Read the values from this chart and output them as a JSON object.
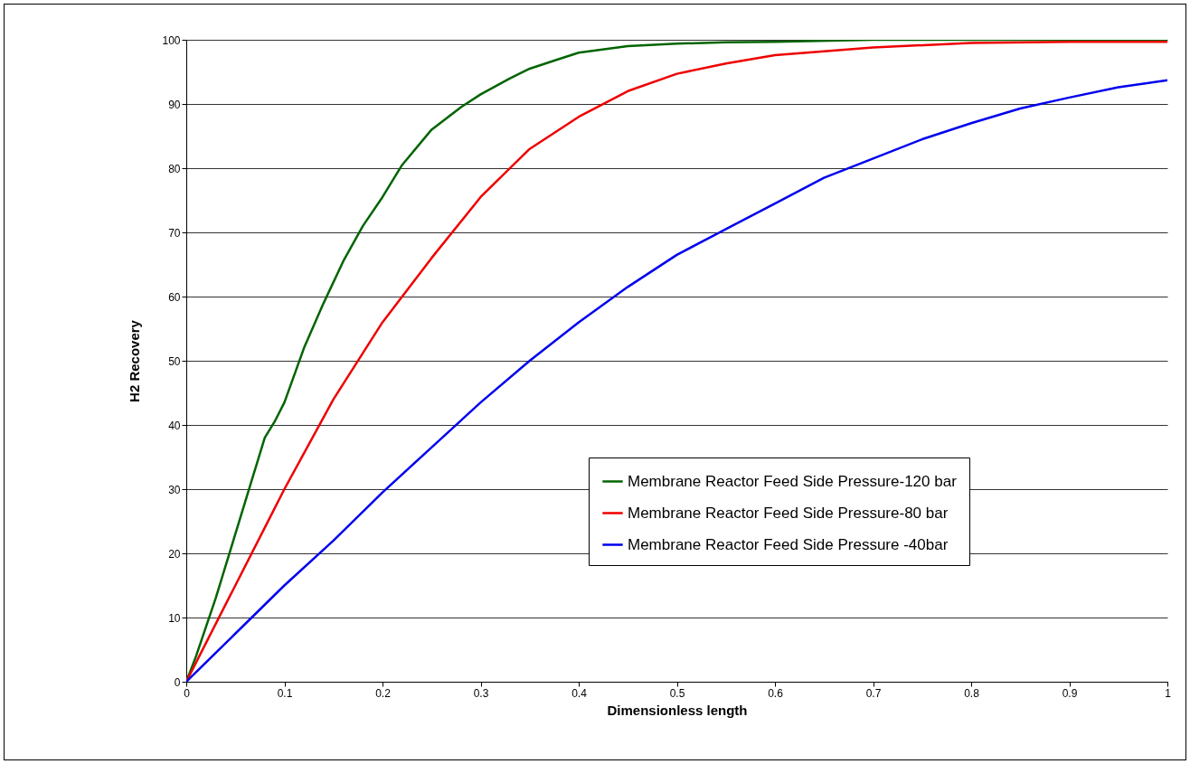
{
  "chart_data": {
    "type": "line",
    "xlabel": "Dimensionless length",
    "ylabel": "H2 Recovery",
    "xlim": [
      0,
      1
    ],
    "xticks": [
      0,
      0.1,
      0.2,
      0.3,
      0.4,
      0.5,
      0.6,
      0.7,
      0.8,
      0.9,
      1
    ],
    "ylim": [
      0,
      100
    ],
    "yticks": [
      0,
      10,
      20,
      30,
      40,
      50,
      60,
      70,
      80,
      90,
      100
    ],
    "grid": "y",
    "legend": "bottom right",
    "marker": "none",
    "line_style": "solid",
    "series": [
      {
        "name": "Membrane Reactor Feed Side Pressure-120 bar",
        "color": "#006400",
        "x": [
          0,
          0.01,
          0.02,
          0.03,
          0.04,
          0.05,
          0.06,
          0.07,
          0.08,
          0.09,
          0.1,
          0.12,
          0.14,
          0.16,
          0.18,
          0.2,
          0.22,
          0.25,
          0.28,
          0.3,
          0.33,
          0.35,
          0.38,
          0.4,
          0.45,
          0.5,
          0.55,
          0.6,
          0.7,
          0.8,
          0.9,
          1
        ],
        "values": [
          0,
          4,
          8.5,
          13,
          18,
          23,
          28,
          33,
          38,
          40.5,
          43.5,
          52,
          59,
          65.5,
          71,
          75.5,
          80.5,
          86,
          89.5,
          91.5,
          94,
          95.5,
          97,
          98,
          99,
          99.4,
          99.6,
          99.7,
          100,
          100,
          100,
          100
        ]
      },
      {
        "name": "Membrane Reactor Feed Side Pressure-80 bar",
        "color": "#ee0000",
        "x": [
          0,
          0.02,
          0.05,
          0.08,
          0.1,
          0.15,
          0.2,
          0.25,
          0.3,
          0.35,
          0.4,
          0.45,
          0.5,
          0.55,
          0.6,
          0.7,
          0.8,
          0.9,
          1
        ],
        "values": [
          0,
          6,
          15,
          24,
          30,
          44,
          56,
          66,
          75.5,
          83,
          88,
          92,
          94.7,
          96.3,
          97.6,
          98.8,
          99.5,
          99.7,
          99.7
        ]
      },
      {
        "name": "Membrane Reactor Feed Side Pressure -40bar",
        "color": "#0000ee",
        "x": [
          0,
          0.05,
          0.1,
          0.15,
          0.2,
          0.25,
          0.3,
          0.35,
          0.4,
          0.45,
          0.5,
          0.55,
          0.6,
          0.65,
          0.7,
          0.75,
          0.8,
          0.85,
          0.9,
          0.95,
          1
        ],
        "values": [
          0,
          7.5,
          15,
          22,
          29.5,
          36.5,
          43.5,
          50,
          56,
          61.5,
          66.5,
          70.5,
          74.5,
          78.5,
          81.5,
          84.5,
          87,
          89.3,
          91,
          92.6,
          93.7
        ]
      }
    ]
  }
}
